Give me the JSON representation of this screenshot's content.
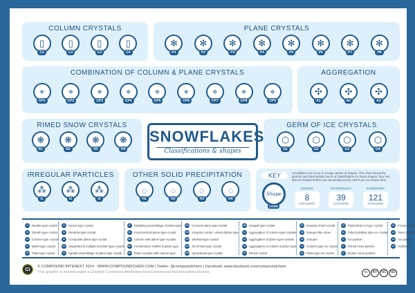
{
  "title": "SNOWFLAKES",
  "subtitle": "Classifications & shapes",
  "groups": [
    {
      "id": "column",
      "title": "COLUMN CRYSTALS",
      "codes": [
        "C1",
        "C2",
        "C3",
        "C4"
      ]
    },
    {
      "id": "plane",
      "title": "PLANE CRYSTALS",
      "codes": [
        "P1",
        "P2",
        "P3",
        "P4",
        "P5",
        "P6",
        "P7",
        "P8"
      ]
    },
    {
      "id": "combo",
      "title": "COMBINATION OF COLUMN & PLANE  CRYSTALS",
      "codes": [
        "CP1",
        "CP2",
        "CP3",
        "CP4",
        "CP5",
        "CP6",
        "CP7",
        "CP8",
        "CP9"
      ]
    },
    {
      "id": "aggregation",
      "title": "AGGREGATION",
      "codes": [
        "A1",
        "A2",
        "A3"
      ]
    },
    {
      "id": "rimed",
      "title": "RIMED SNOW CRYSTALS",
      "codes": [
        "R1",
        "R2",
        "R3",
        "R4"
      ]
    },
    {
      "id": "germ",
      "title": "GERM OF ICE CRYSTALS",
      "codes": [
        "G1",
        "G2",
        "G3",
        "G4"
      ]
    },
    {
      "id": "irregular",
      "title": "IRREGULAR PARTICLES",
      "codes": [
        "I1",
        "I2",
        "I3"
      ]
    },
    {
      "id": "other",
      "title": "OTHER SOLID PRECIPITATION",
      "codes": [
        "H1",
        "H2",
        "H3",
        "H4"
      ]
    }
  ],
  "key": {
    "title": "KEY",
    "shape": "Shape",
    "code": "CODE",
    "text": "Snowflakes can occur in a huge variety of shapes. This chart shows the general and intermediate levels of classification for these shapes; they can also be divided further into elementary levels, which are not shown here.",
    "stats": [
      {
        "label": "GENERAL",
        "value": "8",
        "unit": "CATEGORIES"
      },
      {
        "label": "INTERMEDIATE",
        "value": "39",
        "unit": "CATEGORIES"
      },
      {
        "label": "ELEMENTARY",
        "value": "121",
        "unit": "CATEGORIES"
      }
    ]
  },
  "legend": [
    [
      [
        "C1",
        "Needle-type crystal"
      ],
      [
        "C2",
        "Sheath-type crystal"
      ],
      [
        "C3",
        "Column-type crystal"
      ],
      [
        "C4",
        "Bullet-type crystal"
      ],
      [
        "P1",
        "Plate-type crystal"
      ]
    ],
    [
      [
        "P2",
        "Sector-type crystal"
      ],
      [
        "P3",
        "Dendrite-type crystal"
      ],
      [
        "P4",
        "Composite plane-type crystal"
      ],
      [
        "P5",
        "Separated & multiple dendrite-type crystal"
      ],
      [
        "P6",
        "Spatial assemblage of plane-type crystal"
      ]
    ],
    [
      [
        "P7",
        "Radiating assemblage of plane-type"
      ],
      [
        "P8",
        "Asymmetrical plane-type crystal"
      ],
      [
        "CP1",
        "Column with plane-type crystals"
      ],
      [
        "CP2",
        "Combination: bullets & plane-type"
      ],
      [
        "CP3",
        "Plane crystals with column-type"
      ]
    ],
    [
      [
        "CP4",
        "Crossed plane-type crystal"
      ],
      [
        "CP5",
        "Irregular combo: column/plane-type"
      ],
      [
        "CP6",
        "Skeletal-type crystal"
      ],
      [
        "CP7",
        "Scroll twin-type crystal"
      ],
      [
        "CP8",
        "Spearhead-type crystal"
      ]
    ],
    [
      [
        "CP9",
        "Seagull-type crystal"
      ],
      [
        "A1",
        "Aggregation of column-type crystals"
      ],
      [
        "A2",
        "Aggregation of plane-type crystals"
      ],
      [
        "A3",
        "Aggregation of column & plane-type"
      ],
      [
        "R1",
        "Rimed crystal"
      ]
    ],
    [
      [
        "R2",
        "Densely rimed crystal"
      ],
      [
        "R3",
        "Graupel-like snow"
      ],
      [
        "R4",
        "Graupel"
      ],
      [
        "G1",
        "Column-type ice crystal"
      ],
      [
        "G2",
        "Plate-type ice crystal"
      ]
    ],
    [
      [
        "G3",
        "Polyhedral ice-type crystal"
      ],
      [
        "G4",
        "Polycrystalline-type ice crystal"
      ],
      [
        "I1",
        "Ice particle"
      ],
      [
        "I2",
        "Rimed snow particle"
      ],
      [
        "I3",
        "Broken snow particle"
      ]
    ],
    [
      [
        "H1",
        "Frozen hydrometeor particle"
      ],
      [
        "H2",
        "Sleet particle"
      ],
      [
        "H3",
        "Ice particle"
      ],
      [
        "H4",
        "Hailstone"
      ]
    ]
  ],
  "footer": {
    "logo": "Ci",
    "line1": "© COMPOUND INTEREST 2014 - WWW.COMPOUNDCHEM.COM | Twitter: @compoundchem | Facebook: www.facebook.com/compoundchem",
    "line2": "This graphic is shared under a Creative Commons Attribution-NonCommercial-NoDerivatives licence.",
    "license": [
      "cc",
      "BY",
      "NC",
      "ND"
    ]
  },
  "colors": {
    "frame": "#2a679a",
    "box": "#def0fa",
    "accent": "#1f5a8c"
  }
}
